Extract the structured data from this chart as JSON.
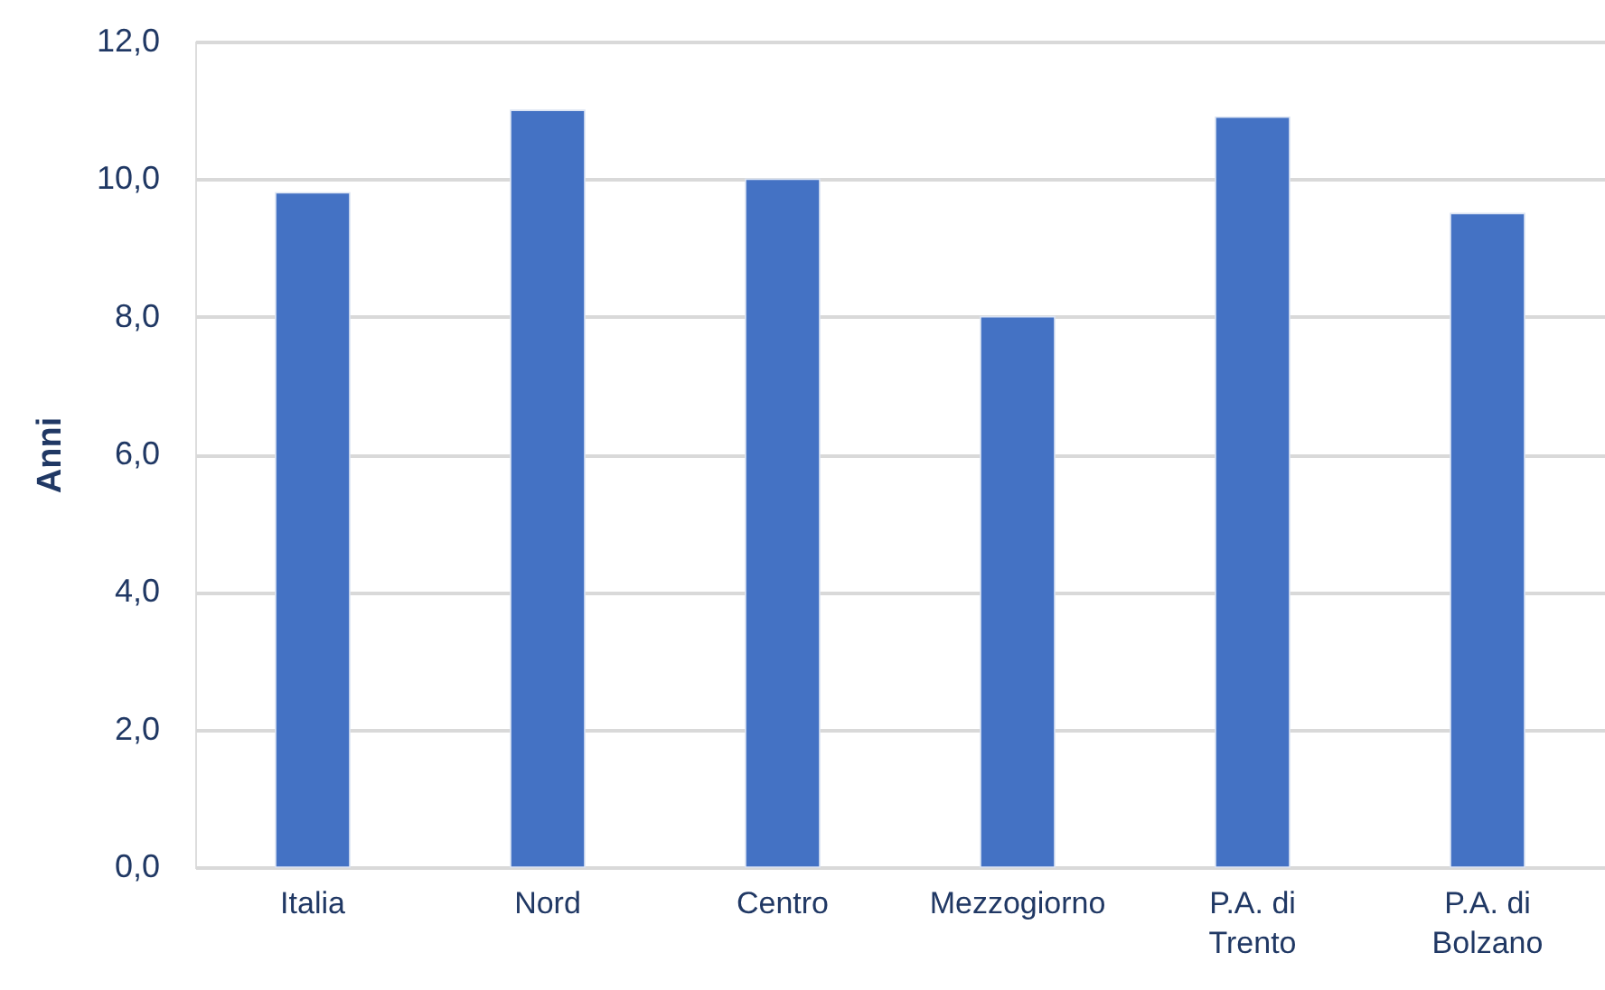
{
  "chart_data": {
    "type": "bar",
    "categories": [
      "Italia",
      "Nord",
      "Centro",
      "Mezzogiorno",
      "P.A. di Trento",
      "P.A. di Bolzano"
    ],
    "values": [
      9.8,
      11.0,
      10.0,
      8.0,
      10.9,
      9.5
    ],
    "color": "#4472c4",
    "ylabel": "Anni",
    "ylim": [
      0,
      12
    ],
    "yticks": [
      {
        "value": 0,
        "label": "0,0"
      },
      {
        "value": 2,
        "label": "2,0"
      },
      {
        "value": 4,
        "label": "4,0"
      },
      {
        "value": 6,
        "label": "6,0"
      },
      {
        "value": 8,
        "label": "8,0"
      },
      {
        "value": 10,
        "label": "10,0"
      },
      {
        "value": 12,
        "label": "12,0"
      }
    ],
    "grid": "y"
  }
}
